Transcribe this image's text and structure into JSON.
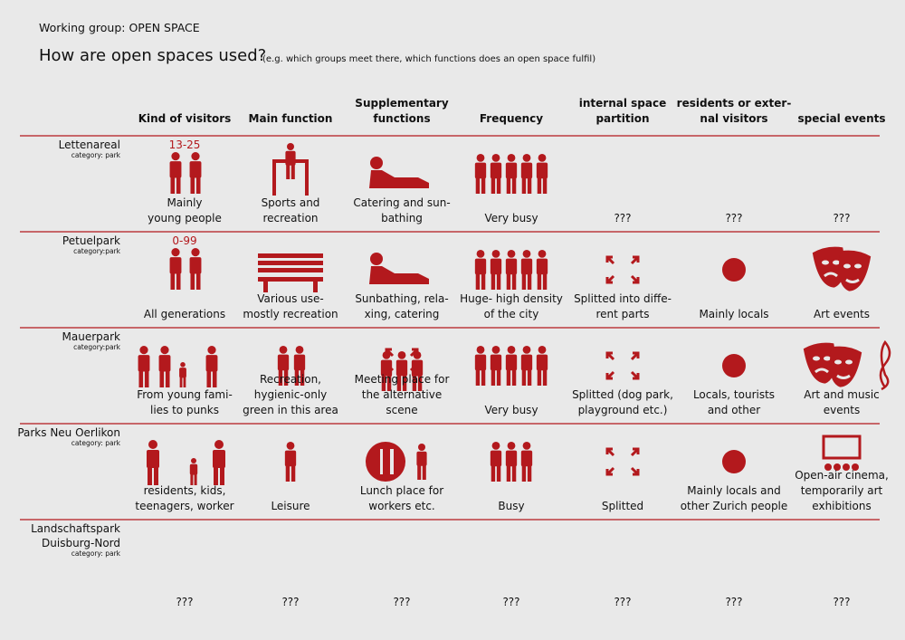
{
  "header": {
    "group": "Working group: OPEN SPACE",
    "title": "How are open spaces used?",
    "note": "(e.g. which groups meet there, which functions does an open space fulfil)"
  },
  "columns": [
    [
      "Kind of visitors"
    ],
    [
      "Main function"
    ],
    [
      "Supplementary",
      "functions"
    ],
    [
      "Frequency"
    ],
    [
      "internal space",
      "partition"
    ],
    [
      "residents or exter-",
      "nal visitors"
    ],
    [
      "special events"
    ]
  ],
  "rows": [
    {
      "name": [
        "Lettenareal"
      ],
      "category": "category: park",
      "cells": [
        {
          "label": "13-25",
          "text": [
            "Mainly",
            "young people"
          ]
        },
        {
          "text": [
            "Sports and",
            "recreation"
          ]
        },
        {
          "text": [
            "Catering and sun-",
            "bathing"
          ]
        },
        {
          "text": [
            "Very busy"
          ]
        },
        {
          "text": [
            "???"
          ]
        },
        {
          "text": [
            "???"
          ]
        },
        {
          "text": [
            "???"
          ]
        }
      ]
    },
    {
      "name": [
        "Petuelpark"
      ],
      "category": "category:park",
      "cells": [
        {
          "label": "0-99",
          "text": [
            "All generations"
          ]
        },
        {
          "text": [
            "Various use-",
            "mostly recreation"
          ]
        },
        {
          "text": [
            "Sunbathing, rela-",
            "xing, catering"
          ]
        },
        {
          "text": [
            "Huge- high density",
            "of the city"
          ]
        },
        {
          "text": [
            "Splitted into diffe-",
            "rent parts"
          ]
        },
        {
          "text": [
            "Mainly locals"
          ]
        },
        {
          "text": [
            "Art events"
          ]
        }
      ]
    },
    {
      "name": [
        "Mauerpark"
      ],
      "category": "category:park",
      "cells": [
        {
          "text": [
            "From young fami-",
            "lies to punks"
          ]
        },
        {
          "text": [
            "Recreation,",
            "hygienic-only",
            "green in this area"
          ]
        },
        {
          "text": [
            "Meeting place for",
            "the alternative",
            "scene"
          ]
        },
        {
          "text": [
            "Very busy"
          ]
        },
        {
          "text": [
            "Splitted (dog park,",
            "playground etc.)"
          ]
        },
        {
          "text": [
            "Locals, tourists",
            "and other"
          ]
        },
        {
          "text": [
            "Art and music",
            "events"
          ]
        }
      ]
    },
    {
      "name": [
        "Parks Neu Oerlikon"
      ],
      "category": "category: park",
      "cells": [
        {
          "text": [
            "residents, kids,",
            "teenagers, worker"
          ]
        },
        {
          "text": [
            "Leisure"
          ]
        },
        {
          "text": [
            "Lunch place for",
            "workers etc."
          ]
        },
        {
          "text": [
            "Busy"
          ]
        },
        {
          "text": [
            "Splitted"
          ]
        },
        {
          "text": [
            "Mainly locals and",
            "other Zurich people"
          ]
        },
        {
          "text": [
            "Open-air cinema,",
            "temporarily art",
            "exhibitions"
          ]
        }
      ]
    },
    {
      "name": [
        "Landschaftspark",
        "Duisburg-Nord"
      ],
      "category": "category: park",
      "cells": [
        {
          "text": [
            "???"
          ]
        },
        {
          "text": [
            "???"
          ]
        },
        {
          "text": [
            "???"
          ]
        },
        {
          "text": [
            "???"
          ]
        },
        {
          "text": [
            "???"
          ]
        },
        {
          "text": [
            "???"
          ]
        },
        {
          "text": [
            "???"
          ]
        }
      ]
    }
  ]
}
